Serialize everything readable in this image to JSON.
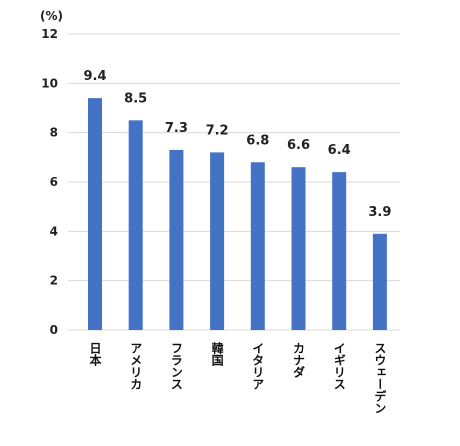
{
  "chart_data": {
    "type": "bar",
    "unit_label": "(%)",
    "categories": [
      "日本",
      "アメリカ",
      "フランス",
      "韓国",
      "イタリア",
      "カナダ",
      "イギリス",
      "スウェーデン"
    ],
    "values": [
      9.4,
      8.5,
      7.3,
      7.2,
      6.8,
      6.6,
      6.4,
      3.9
    ],
    "value_labels": [
      "9.4",
      "8.5",
      "7.3",
      "7.2",
      "6.8",
      "6.6",
      "6.4",
      "3.9"
    ],
    "yticks": [
      "0",
      "2",
      "4",
      "6",
      "8",
      "10",
      "12"
    ],
    "ylim": [
      0,
      12
    ],
    "grid": true,
    "colors": {
      "bar": "#4472C4",
      "grid": "#D9D9D9"
    }
  }
}
